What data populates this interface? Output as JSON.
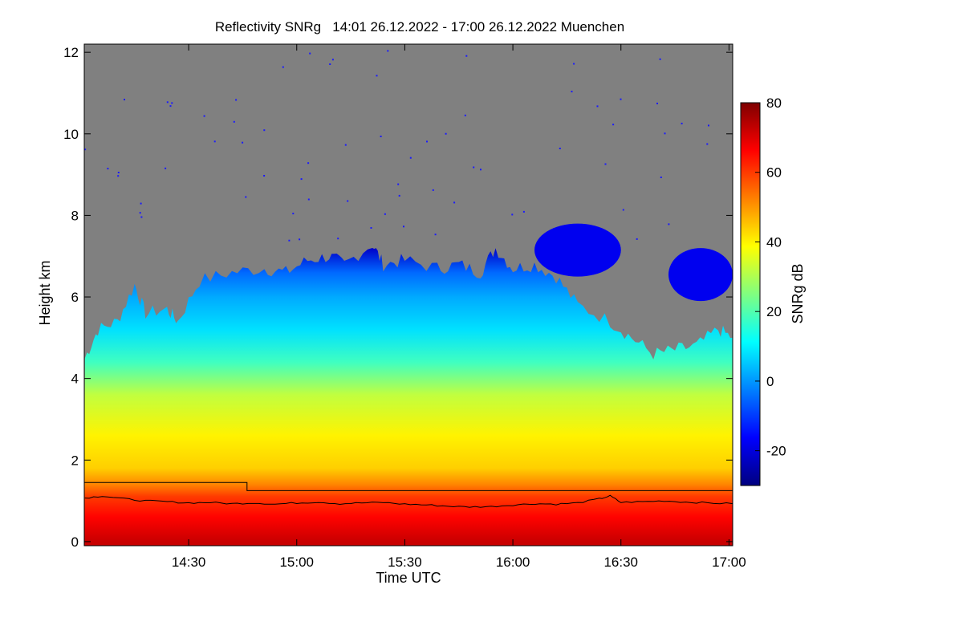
{
  "chart_data": {
    "type": "heatmap",
    "title": "Reflectivity SNRg   14:01 26.12.2022 - 17:00 26.12.2022 Muenchen",
    "xlabel": "Time UTC",
    "ylabel": "Height km",
    "colorbar_label": "SNRg dB",
    "x_range_hours": [
      14.017,
      17.017
    ],
    "y_range_km": [
      -0.1,
      12.2
    ],
    "x_ticks": [
      {
        "label": "14:30",
        "hour": 14.5
      },
      {
        "label": "15:00",
        "hour": 15.0
      },
      {
        "label": "15:30",
        "hour": 15.5
      },
      {
        "label": "16:00",
        "hour": 16.0
      },
      {
        "label": "16:30",
        "hour": 16.5
      },
      {
        "label": "17:00",
        "hour": 17.0
      }
    ],
    "y_ticks": [
      {
        "label": "0",
        "km": 0
      },
      {
        "label": "2",
        "km": 2
      },
      {
        "label": "4",
        "km": 4
      },
      {
        "label": "6",
        "km": 6
      },
      {
        "label": "8",
        "km": 8
      },
      {
        "label": "10",
        "km": 10
      },
      {
        "label": "12",
        "km": 12
      }
    ],
    "colorbar_range_db": [
      -30,
      80
    ],
    "colorbar_ticks": [
      {
        "label": "-20",
        "db": -20
      },
      {
        "label": "0",
        "db": 0
      },
      {
        "label": "20",
        "db": 20
      },
      {
        "label": "40",
        "db": 40
      },
      {
        "label": "60",
        "db": 60
      },
      {
        "label": "80",
        "db": 80
      }
    ],
    "colormap": [
      "#00007f",
      "#0000ff",
      "#0080ff",
      "#00ffff",
      "#80ff80",
      "#ffff00",
      "#ff8000",
      "#ff0000",
      "#7f0000"
    ],
    "no_signal_color": "#808080",
    "echo_top_km": [
      {
        "hour": 14.02,
        "km": 4.5
      },
      {
        "hour": 14.08,
        "km": 5.2
      },
      {
        "hour": 14.17,
        "km": 5.4
      },
      {
        "hour": 14.25,
        "km": 6.3
      },
      {
        "hour": 14.3,
        "km": 5.6
      },
      {
        "hour": 14.4,
        "km": 5.7
      },
      {
        "hour": 14.45,
        "km": 5.4
      },
      {
        "hour": 14.55,
        "km": 6.4
      },
      {
        "hour": 14.7,
        "km": 6.6
      },
      {
        "hour": 14.85,
        "km": 6.7
      },
      {
        "hour": 14.95,
        "km": 6.6
      },
      {
        "hour": 15.05,
        "km": 6.9
      },
      {
        "hour": 15.15,
        "km": 7.0
      },
      {
        "hour": 15.22,
        "km": 6.8
      },
      {
        "hour": 15.35,
        "km": 7.3
      },
      {
        "hour": 15.4,
        "km": 6.8
      },
      {
        "hour": 15.5,
        "km": 6.9
      },
      {
        "hour": 15.65,
        "km": 6.7
      },
      {
        "hour": 15.75,
        "km": 6.8
      },
      {
        "hour": 15.85,
        "km": 6.6
      },
      {
        "hour": 15.92,
        "km": 7.2
      },
      {
        "hour": 16.0,
        "km": 6.7
      },
      {
        "hour": 16.1,
        "km": 6.8
      },
      {
        "hour": 16.2,
        "km": 6.5
      },
      {
        "hour": 16.3,
        "km": 5.8
      },
      {
        "hour": 16.45,
        "km": 5.4
      },
      {
        "hour": 16.55,
        "km": 5.0
      },
      {
        "hour": 16.65,
        "km": 4.6
      },
      {
        "hour": 16.75,
        "km": 4.7
      },
      {
        "hour": 16.85,
        "km": 4.8
      },
      {
        "hour": 16.95,
        "km": 5.2
      },
      {
        "hour": 17.017,
        "km": 5.0
      }
    ],
    "elevated_patches": [
      {
        "hour_start": 16.1,
        "hour_end": 16.5,
        "km_bottom": 6.5,
        "km_top": 7.8
      },
      {
        "hour_start": 16.72,
        "hour_end": 17.017,
        "km_bottom": 5.9,
        "km_top": 7.2
      }
    ],
    "step_line_km": [
      {
        "hour_start": 14.017,
        "hour_end": 14.77,
        "km": 1.45
      },
      {
        "hour_start": 14.77,
        "hour_end": 17.017,
        "km": 1.25
      }
    ],
    "cloud_base_km": [
      {
        "hour": 14.02,
        "km": 1.07
      },
      {
        "hour": 14.1,
        "km": 1.12
      },
      {
        "hour": 14.2,
        "km": 1.05
      },
      {
        "hour": 14.3,
        "km": 1.0
      },
      {
        "hour": 14.4,
        "km": 0.98
      },
      {
        "hour": 14.5,
        "km": 0.95
      },
      {
        "hour": 14.6,
        "km": 0.96
      },
      {
        "hour": 14.7,
        "km": 0.93
      },
      {
        "hour": 14.8,
        "km": 0.95
      },
      {
        "hour": 14.9,
        "km": 0.92
      },
      {
        "hour": 15.0,
        "km": 0.95
      },
      {
        "hour": 15.1,
        "km": 0.97
      },
      {
        "hour": 15.2,
        "km": 0.93
      },
      {
        "hour": 15.3,
        "km": 0.95
      },
      {
        "hour": 15.4,
        "km": 0.96
      },
      {
        "hour": 15.5,
        "km": 0.92
      },
      {
        "hour": 15.6,
        "km": 0.9
      },
      {
        "hour": 15.7,
        "km": 0.87
      },
      {
        "hour": 15.8,
        "km": 0.85
      },
      {
        "hour": 15.9,
        "km": 0.86
      },
      {
        "hour": 16.0,
        "km": 0.9
      },
      {
        "hour": 16.1,
        "km": 0.93
      },
      {
        "hour": 16.2,
        "km": 0.92
      },
      {
        "hour": 16.3,
        "km": 0.95
      },
      {
        "hour": 16.4,
        "km": 1.05
      },
      {
        "hour": 16.45,
        "km": 1.12
      },
      {
        "hour": 16.5,
        "km": 0.96
      },
      {
        "hour": 16.6,
        "km": 0.98
      },
      {
        "hour": 16.7,
        "km": 1.0
      },
      {
        "hour": 16.8,
        "km": 0.97
      },
      {
        "hour": 16.9,
        "km": 0.95
      },
      {
        "hour": 17.017,
        "km": 0.93
      }
    ]
  }
}
